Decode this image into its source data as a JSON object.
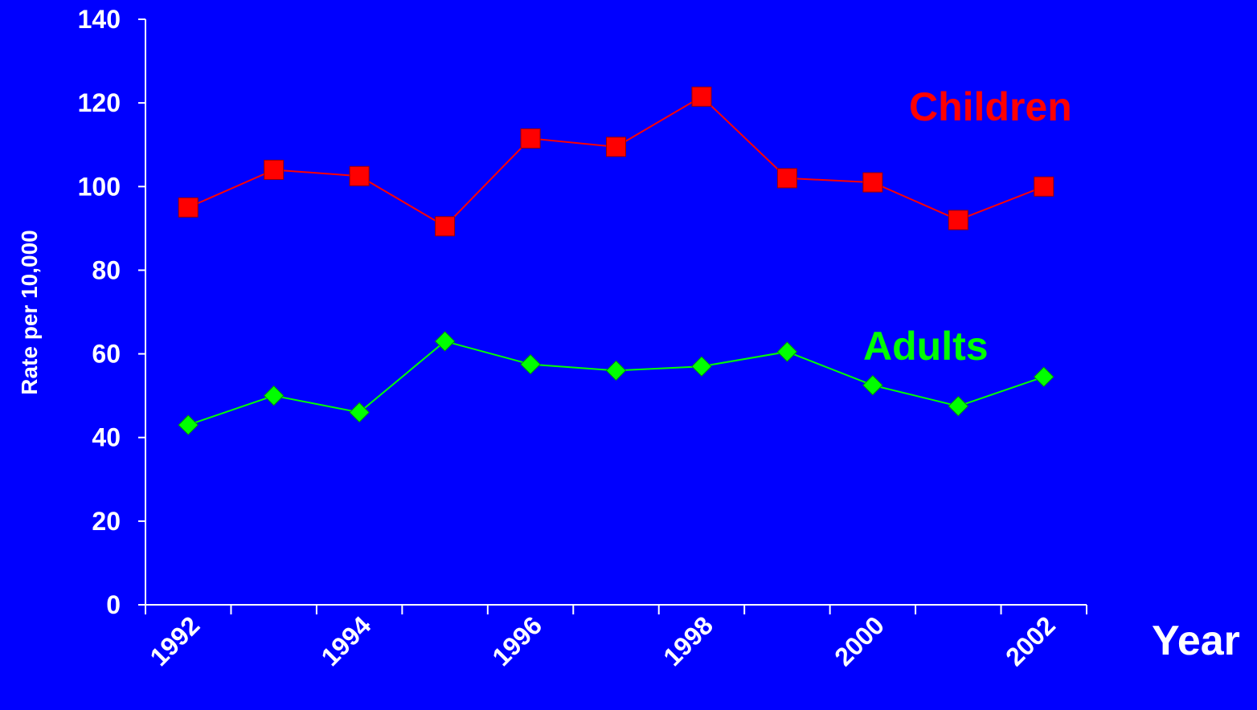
{
  "chart_data": {
    "type": "line",
    "x": [
      1992,
      1993,
      1994,
      1995,
      1996,
      1997,
      1998,
      1999,
      2000,
      2001,
      2002
    ],
    "series": [
      {
        "name": "Children",
        "values": [
          95,
          104,
          102.5,
          90.5,
          111.5,
          109.5,
          121.5,
          102,
          101,
          92,
          100
        ],
        "color": "#FF0000",
        "marker": "square"
      },
      {
        "name": "Adults",
        "values": [
          43,
          50,
          46,
          63,
          57.5,
          56,
          57,
          60.5,
          52.5,
          47.5,
          54.5
        ],
        "color": "#00FF00",
        "marker": "diamond"
      }
    ],
    "xticklabels": [
      "1992",
      "1994",
      "1996",
      "1998",
      "2000",
      "2002"
    ],
    "yticks": [
      0,
      20,
      40,
      60,
      80,
      100,
      120,
      140
    ],
    "ylim": [
      0,
      140
    ],
    "xlabel": "Year",
    "ylabel": "Rate per 10,000",
    "title": "",
    "grid": false,
    "legend": "inline labels",
    "colors": {
      "background": "#0000FF",
      "axis": "#FFFFFF",
      "text": "#FFFFFF"
    }
  }
}
